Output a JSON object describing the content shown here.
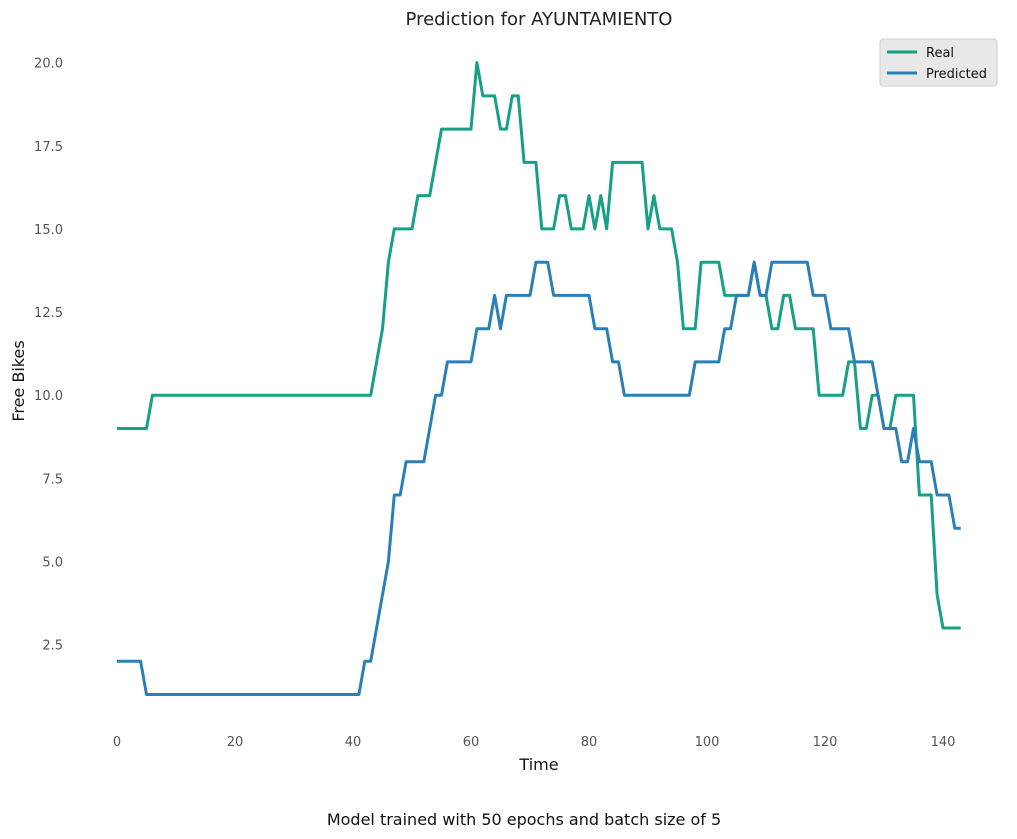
{
  "chart_data": {
    "type": "line",
    "title": "Prediction for AYUNTAMIENTO",
    "xlabel": "Time",
    "ylabel": "Free Bikes",
    "caption": "Model trained with 50 epochs and batch size of 5",
    "xlim": [
      0,
      143
    ],
    "ylim": [
      0,
      20
    ],
    "xticks": [
      0,
      20,
      40,
      60,
      80,
      100,
      120,
      140
    ],
    "yticks": [
      2.5,
      5.0,
      7.5,
      10.0,
      12.5,
      15.0,
      17.5,
      20.0
    ],
    "xtick_labels": [
      "0",
      "20",
      "40",
      "60",
      "80",
      "100",
      "120",
      "140"
    ],
    "ytick_labels": [
      "2.5",
      "5.0",
      "7.5",
      "10.0",
      "12.5",
      "15.0",
      "17.5",
      "20.0"
    ],
    "grid": false,
    "legend_position": "top-right",
    "series": [
      {
        "name": "Real",
        "color": "#16a085",
        "points": [
          [
            0,
            9
          ],
          [
            5,
            9
          ],
          [
            6,
            10
          ],
          [
            43,
            10
          ],
          [
            45,
            12
          ],
          [
            46,
            14
          ],
          [
            47,
            15
          ],
          [
            50,
            15
          ],
          [
            51,
            16
          ],
          [
            53,
            16
          ],
          [
            55,
            18
          ],
          [
            60,
            18
          ],
          [
            61,
            20
          ],
          [
            62,
            19
          ],
          [
            64,
            19
          ],
          [
            65,
            18
          ],
          [
            66,
            18
          ],
          [
            67,
            19
          ],
          [
            68,
            19
          ],
          [
            69,
            17
          ],
          [
            71,
            17
          ],
          [
            72,
            15
          ],
          [
            74,
            15
          ],
          [
            75,
            16
          ],
          [
            76,
            16
          ],
          [
            77,
            15
          ],
          [
            79,
            15
          ],
          [
            80,
            16
          ],
          [
            81,
            15
          ],
          [
            82,
            16
          ],
          [
            83,
            15
          ],
          [
            84,
            17
          ],
          [
            89,
            17
          ],
          [
            90,
            15
          ],
          [
            91,
            16
          ],
          [
            92,
            15
          ],
          [
            94,
            15
          ],
          [
            95,
            14
          ],
          [
            96,
            12
          ],
          [
            98,
            12
          ],
          [
            99,
            14
          ],
          [
            102,
            14
          ],
          [
            103,
            13
          ],
          [
            107,
            13
          ],
          [
            108,
            14
          ],
          [
            109,
            13
          ],
          [
            110,
            13
          ],
          [
            111,
            12
          ],
          [
            112,
            12
          ],
          [
            113,
            13
          ],
          [
            114,
            13
          ],
          [
            115,
            12
          ],
          [
            118,
            12
          ],
          [
            119,
            10
          ],
          [
            123,
            10
          ],
          [
            124,
            11
          ],
          [
            125,
            11
          ],
          [
            126,
            9
          ],
          [
            127,
            9
          ],
          [
            128,
            10
          ],
          [
            129,
            10
          ],
          [
            130,
            9
          ],
          [
            131,
            9
          ],
          [
            132,
            10
          ],
          [
            135,
            10
          ],
          [
            136,
            7
          ],
          [
            138,
            7
          ],
          [
            139,
            4
          ],
          [
            140,
            3
          ],
          [
            143,
            3
          ]
        ]
      },
      {
        "name": "Predicted",
        "color": "#2980b9",
        "points": [
          [
            0,
            2
          ],
          [
            4,
            2
          ],
          [
            5,
            1
          ],
          [
            41,
            1
          ],
          [
            42,
            2
          ],
          [
            43,
            2
          ],
          [
            46,
            5
          ],
          [
            47,
            7
          ],
          [
            48,
            7
          ],
          [
            49,
            8
          ],
          [
            52,
            8
          ],
          [
            54,
            10
          ],
          [
            55,
            10
          ],
          [
            56,
            11
          ],
          [
            60,
            11
          ],
          [
            61,
            12
          ],
          [
            63,
            12
          ],
          [
            64,
            13
          ],
          [
            65,
            12
          ],
          [
            66,
            13
          ],
          [
            70,
            13
          ],
          [
            71,
            14
          ],
          [
            73,
            14
          ],
          [
            74,
            13
          ],
          [
            80,
            13
          ],
          [
            81,
            12
          ],
          [
            83,
            12
          ],
          [
            84,
            11
          ],
          [
            85,
            11
          ],
          [
            86,
            10
          ],
          [
            97,
            10
          ],
          [
            98,
            11
          ],
          [
            102,
            11
          ],
          [
            103,
            12
          ],
          [
            104,
            12
          ],
          [
            105,
            13
          ],
          [
            107,
            13
          ],
          [
            108,
            14
          ],
          [
            109,
            13
          ],
          [
            110,
            13
          ],
          [
            111,
            14
          ],
          [
            117,
            14
          ],
          [
            118,
            13
          ],
          [
            120,
            13
          ],
          [
            121,
            12
          ],
          [
            124,
            12
          ],
          [
            125,
            11
          ],
          [
            128,
            11
          ],
          [
            129,
            10
          ],
          [
            130,
            9
          ],
          [
            132,
            9
          ],
          [
            133,
            8
          ],
          [
            134,
            8
          ],
          [
            135,
            9
          ],
          [
            136,
            8
          ],
          [
            138,
            8
          ],
          [
            139,
            7
          ],
          [
            141,
            7
          ],
          [
            142,
            6
          ],
          [
            143,
            6
          ]
        ]
      }
    ]
  }
}
